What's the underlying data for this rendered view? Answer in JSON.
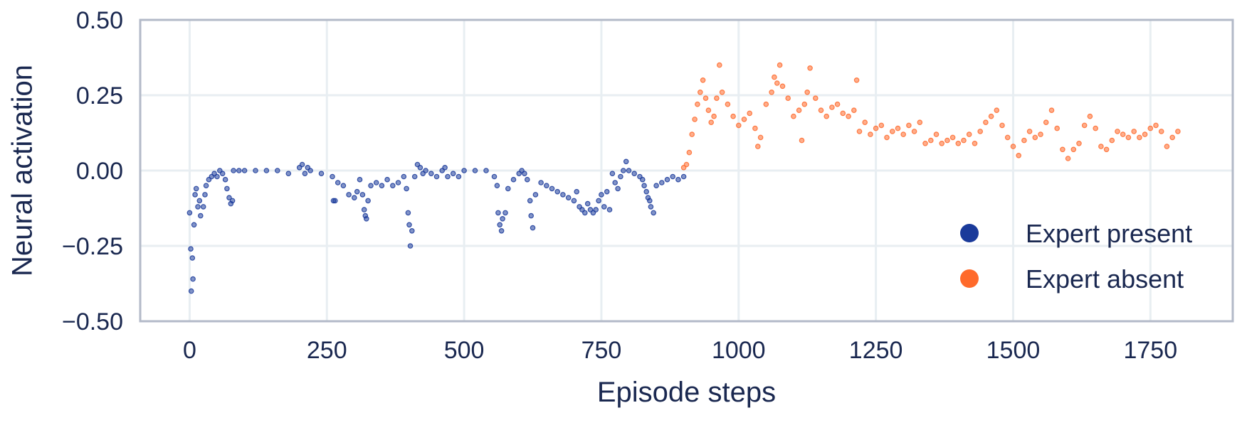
{
  "chart_data": {
    "type": "scatter",
    "xlabel": "Episode steps",
    "ylabel": "Neural activation",
    "xlim": [
      -90,
      1900
    ],
    "ylim": [
      -0.5,
      0.5
    ],
    "x_ticks": [
      0,
      250,
      500,
      750,
      1000,
      1250,
      1500,
      1750
    ],
    "x_tick_labels": [
      "0",
      "250",
      "500",
      "750",
      "1000",
      "1250",
      "1500",
      "1750"
    ],
    "y_ticks": [
      0.5,
      0.25,
      0.0,
      -0.25,
      -0.5
    ],
    "y_tick_labels": [
      "0.50",
      "0.25",
      "0.00",
      "−0.25",
      "−0.50"
    ],
    "grid": true,
    "legend_position": "lower-right",
    "series": [
      {
        "name": "Expert present",
        "color": "#1a3a9a",
        "x_range": [
          0,
          900
        ],
        "points": [
          [
            0,
            -0.14
          ],
          [
            2,
            -0.26
          ],
          [
            3,
            -0.4
          ],
          [
            5,
            -0.29
          ],
          [
            6,
            -0.36
          ],
          [
            8,
            -0.18
          ],
          [
            10,
            -0.08
          ],
          [
            12,
            -0.06
          ],
          [
            15,
            -0.12
          ],
          [
            18,
            -0.1
          ],
          [
            20,
            -0.15
          ],
          [
            25,
            -0.12
          ],
          [
            28,
            -0.08
          ],
          [
            30,
            -0.05
          ],
          [
            35,
            -0.03
          ],
          [
            40,
            -0.02
          ],
          [
            45,
            -0.01
          ],
          [
            50,
            -0.02
          ],
          [
            55,
            0.0
          ],
          [
            60,
            -0.01
          ],
          [
            65,
            -0.03
          ],
          [
            68,
            -0.06
          ],
          [
            72,
            -0.09
          ],
          [
            75,
            -0.11
          ],
          [
            78,
            -0.1
          ],
          [
            80,
            0.0
          ],
          [
            90,
            0.0
          ],
          [
            100,
            0.0
          ],
          [
            120,
            0.0
          ],
          [
            140,
            0.0
          ],
          [
            160,
            0.0
          ],
          [
            180,
            -0.01
          ],
          [
            200,
            0.01
          ],
          [
            205,
            0.02
          ],
          [
            210,
            -0.01
          ],
          [
            215,
            0.01
          ],
          [
            220,
            0.0
          ],
          [
            240,
            -0.01
          ],
          [
            260,
            -0.02
          ],
          [
            262,
            -0.1
          ],
          [
            265,
            -0.1
          ],
          [
            270,
            -0.04
          ],
          [
            280,
            -0.05
          ],
          [
            290,
            -0.08
          ],
          [
            300,
            -0.09
          ],
          [
            305,
            -0.07
          ],
          [
            310,
            -0.03
          ],
          [
            315,
            -0.08
          ],
          [
            318,
            -0.13
          ],
          [
            320,
            -0.15
          ],
          [
            322,
            -0.16
          ],
          [
            325,
            -0.1
          ],
          [
            330,
            -0.05
          ],
          [
            340,
            -0.04
          ],
          [
            350,
            -0.05
          ],
          [
            360,
            -0.03
          ],
          [
            370,
            -0.05
          ],
          [
            380,
            -0.04
          ],
          [
            390,
            -0.02
          ],
          [
            395,
            -0.06
          ],
          [
            398,
            -0.14
          ],
          [
            400,
            -0.18
          ],
          [
            402,
            -0.25
          ],
          [
            405,
            -0.2
          ],
          [
            410,
            -0.02
          ],
          [
            415,
            0.02
          ],
          [
            420,
            0.01
          ],
          [
            425,
            -0.01
          ],
          [
            430,
            0.0
          ],
          [
            440,
            -0.01
          ],
          [
            450,
            -0.02
          ],
          [
            460,
            0.0
          ],
          [
            465,
            0.01
          ],
          [
            470,
            -0.02
          ],
          [
            480,
            -0.01
          ],
          [
            490,
            -0.02
          ],
          [
            500,
            0.0
          ],
          [
            520,
            0.0
          ],
          [
            540,
            0.0
          ],
          [
            555,
            -0.02
          ],
          [
            560,
            -0.05
          ],
          [
            562,
            -0.14
          ],
          [
            565,
            -0.18
          ],
          [
            568,
            -0.2
          ],
          [
            570,
            -0.16
          ],
          [
            575,
            -0.14
          ],
          [
            580,
            -0.06
          ],
          [
            590,
            -0.03
          ],
          [
            600,
            -0.01
          ],
          [
            605,
            0.0
          ],
          [
            610,
            -0.01
          ],
          [
            615,
            -0.03
          ],
          [
            620,
            -0.1
          ],
          [
            622,
            -0.15
          ],
          [
            625,
            -0.19
          ],
          [
            630,
            -0.08
          ],
          [
            640,
            -0.04
          ],
          [
            650,
            -0.05
          ],
          [
            660,
            -0.06
          ],
          [
            670,
            -0.07
          ],
          [
            680,
            -0.08
          ],
          [
            690,
            -0.09
          ],
          [
            700,
            -0.1
          ],
          [
            705,
            -0.07
          ],
          [
            710,
            -0.12
          ],
          [
            715,
            -0.13
          ],
          [
            720,
            -0.14
          ],
          [
            725,
            -0.11
          ],
          [
            730,
            -0.13
          ],
          [
            735,
            -0.14
          ],
          [
            740,
            -0.13
          ],
          [
            745,
            -0.1
          ],
          [
            750,
            -0.08
          ],
          [
            755,
            -0.12
          ],
          [
            760,
            -0.07
          ],
          [
            765,
            -0.13
          ],
          [
            770,
            -0.01
          ],
          [
            775,
            -0.04
          ],
          [
            780,
            -0.06
          ],
          [
            785,
            -0.02
          ],
          [
            790,
            0.0
          ],
          [
            795,
            0.03
          ],
          [
            800,
            0.0
          ],
          [
            810,
            -0.01
          ],
          [
            820,
            -0.02
          ],
          [
            825,
            -0.03
          ],
          [
            828,
            -0.05
          ],
          [
            832,
            -0.07
          ],
          [
            835,
            -0.09
          ],
          [
            838,
            -0.1
          ],
          [
            840,
            -0.12
          ],
          [
            845,
            -0.14
          ],
          [
            850,
            -0.05
          ],
          [
            860,
            -0.04
          ],
          [
            870,
            -0.03
          ],
          [
            880,
            -0.02
          ],
          [
            890,
            -0.03
          ],
          [
            900,
            -0.02
          ]
        ]
      },
      {
        "name": "Expert absent",
        "color": "#ff6a2b",
        "x_range": [
          900,
          1800
        ],
        "points": [
          [
            900,
            0.01
          ],
          [
            905,
            0.02
          ],
          [
            910,
            0.06
          ],
          [
            915,
            0.12
          ],
          [
            920,
            0.17
          ],
          [
            925,
            0.22
          ],
          [
            930,
            0.26
          ],
          [
            935,
            0.3
          ],
          [
            940,
            0.24
          ],
          [
            945,
            0.2
          ],
          [
            950,
            0.16
          ],
          [
            955,
            0.18
          ],
          [
            960,
            0.24
          ],
          [
            965,
            0.35
          ],
          [
            970,
            0.26
          ],
          [
            980,
            0.22
          ],
          [
            990,
            0.18
          ],
          [
            1000,
            0.15
          ],
          [
            1010,
            0.17
          ],
          [
            1020,
            0.19
          ],
          [
            1030,
            0.14
          ],
          [
            1035,
            0.08
          ],
          [
            1040,
            0.11
          ],
          [
            1050,
            0.22
          ],
          [
            1060,
            0.26
          ],
          [
            1065,
            0.31
          ],
          [
            1070,
            0.29
          ],
          [
            1075,
            0.35
          ],
          [
            1080,
            0.28
          ],
          [
            1090,
            0.24
          ],
          [
            1100,
            0.18
          ],
          [
            1110,
            0.2
          ],
          [
            1115,
            0.1
          ],
          [
            1120,
            0.22
          ],
          [
            1125,
            0.26
          ],
          [
            1130,
            0.34
          ],
          [
            1140,
            0.24
          ],
          [
            1150,
            0.2
          ],
          [
            1160,
            0.18
          ],
          [
            1170,
            0.21
          ],
          [
            1180,
            0.22
          ],
          [
            1190,
            0.19
          ],
          [
            1200,
            0.18
          ],
          [
            1210,
            0.2
          ],
          [
            1215,
            0.3
          ],
          [
            1220,
            0.13
          ],
          [
            1230,
            0.16
          ],
          [
            1240,
            0.12
          ],
          [
            1250,
            0.14
          ],
          [
            1260,
            0.15
          ],
          [
            1270,
            0.11
          ],
          [
            1280,
            0.13
          ],
          [
            1290,
            0.14
          ],
          [
            1300,
            0.12
          ],
          [
            1310,
            0.15
          ],
          [
            1320,
            0.13
          ],
          [
            1330,
            0.16
          ],
          [
            1340,
            0.09
          ],
          [
            1350,
            0.1
          ],
          [
            1360,
            0.12
          ],
          [
            1370,
            0.09
          ],
          [
            1380,
            0.1
          ],
          [
            1390,
            0.11
          ],
          [
            1400,
            0.09
          ],
          [
            1410,
            0.1
          ],
          [
            1420,
            0.12
          ],
          [
            1430,
            0.09
          ],
          [
            1440,
            0.13
          ],
          [
            1450,
            0.16
          ],
          [
            1460,
            0.18
          ],
          [
            1470,
            0.2
          ],
          [
            1480,
            0.15
          ],
          [
            1490,
            0.11
          ],
          [
            1500,
            0.08
          ],
          [
            1510,
            0.05
          ],
          [
            1520,
            0.1
          ],
          [
            1530,
            0.13
          ],
          [
            1540,
            0.11
          ],
          [
            1550,
            0.12
          ],
          [
            1560,
            0.16
          ],
          [
            1570,
            0.2
          ],
          [
            1580,
            0.14
          ],
          [
            1590,
            0.07
          ],
          [
            1600,
            0.04
          ],
          [
            1610,
            0.07
          ],
          [
            1620,
            0.09
          ],
          [
            1630,
            0.15
          ],
          [
            1640,
            0.18
          ],
          [
            1650,
            0.14
          ],
          [
            1660,
            0.08
          ],
          [
            1670,
            0.07
          ],
          [
            1680,
            0.1
          ],
          [
            1690,
            0.13
          ],
          [
            1700,
            0.12
          ],
          [
            1710,
            0.11
          ],
          [
            1720,
            0.13
          ],
          [
            1730,
            0.11
          ],
          [
            1740,
            0.12
          ],
          [
            1750,
            0.14
          ],
          [
            1760,
            0.15
          ],
          [
            1770,
            0.13
          ],
          [
            1780,
            0.08
          ],
          [
            1790,
            0.11
          ],
          [
            1800,
            0.13
          ]
        ]
      }
    ]
  }
}
